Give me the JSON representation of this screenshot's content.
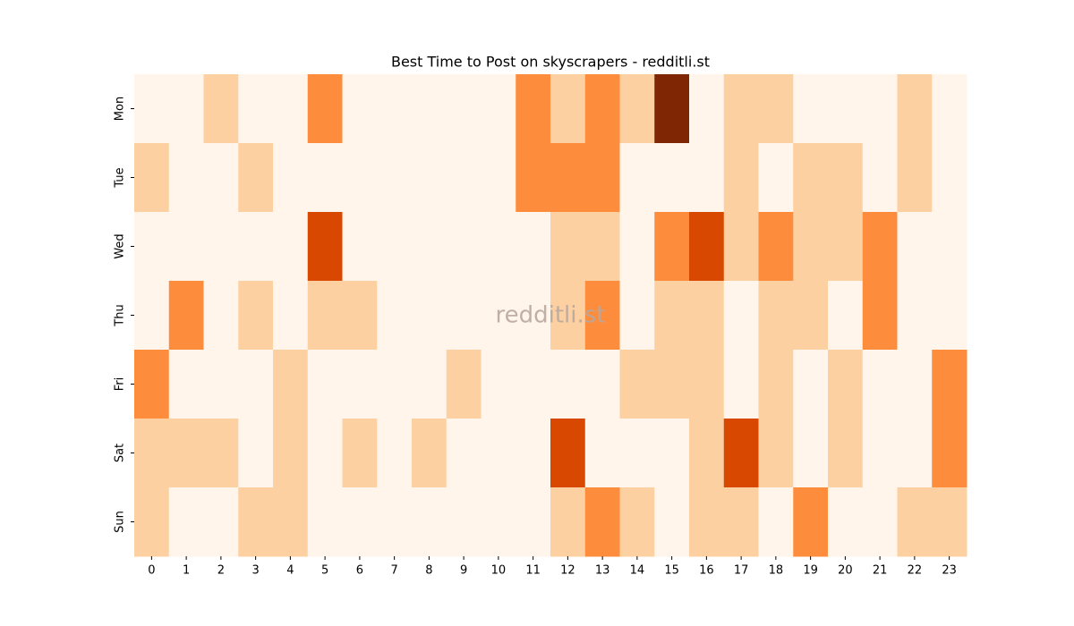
{
  "chart_data": {
    "type": "heatmap",
    "title": "Best Time to Post on skyscrapers - redditli.st",
    "watermark": "redditli.st",
    "x": [
      0,
      1,
      2,
      3,
      4,
      5,
      6,
      7,
      8,
      9,
      10,
      11,
      12,
      13,
      14,
      15,
      16,
      17,
      18,
      19,
      20,
      21,
      22,
      23
    ],
    "y": [
      "Mon",
      "Tue",
      "Wed",
      "Thu",
      "Fri",
      "Sat",
      "Sun"
    ],
    "values": [
      [
        0,
        0,
        1,
        0,
        0,
        2,
        0,
        0,
        0,
        0,
        0,
        2,
        1,
        2,
        1,
        4,
        0,
        1,
        1,
        0,
        0,
        0,
        1,
        0
      ],
      [
        1,
        0,
        0,
        1,
        0,
        0,
        0,
        0,
        0,
        0,
        0,
        2,
        2,
        2,
        0,
        0,
        0,
        1,
        0,
        1,
        1,
        0,
        1,
        0
      ],
      [
        0,
        0,
        0,
        0,
        0,
        3,
        0,
        0,
        0,
        0,
        0,
        0,
        1,
        1,
        0,
        2,
        3,
        1,
        2,
        1,
        1,
        2,
        0,
        0
      ],
      [
        0,
        2,
        0,
        1,
        0,
        1,
        1,
        0,
        0,
        0,
        0,
        0,
        1,
        2,
        0,
        1,
        1,
        0,
        1,
        1,
        0,
        2,
        0,
        0
      ],
      [
        2,
        0,
        0,
        0,
        1,
        0,
        0,
        0,
        0,
        1,
        0,
        0,
        0,
        0,
        1,
        1,
        1,
        0,
        1,
        0,
        1,
        0,
        0,
        2
      ],
      [
        1,
        1,
        1,
        0,
        1,
        0,
        1,
        0,
        1,
        0,
        0,
        0,
        3,
        0,
        0,
        0,
        1,
        3,
        1,
        0,
        1,
        0,
        0,
        2
      ],
      [
        1,
        0,
        0,
        1,
        1,
        0,
        0,
        0,
        0,
        0,
        0,
        0,
        1,
        2,
        1,
        0,
        1,
        1,
        0,
        2,
        0,
        0,
        1,
        1
      ]
    ],
    "zlim": [
      0,
      4
    ],
    "colormap": [
      "#fff5eb",
      "#fdd0a2",
      "#fd8d3c",
      "#d94801",
      "#7f2704"
    ]
  }
}
